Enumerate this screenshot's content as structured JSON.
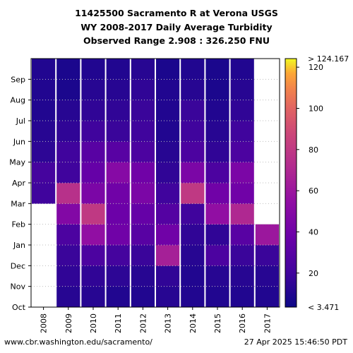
{
  "chart_data": {
    "type": "heatmap",
    "title_lines": [
      "11425500 Sacramento R at Verona USGS",
      "WY 2008-2017 Daily Average Turbidity",
      "Observed Range 2.908 : 326.250 FNU"
    ],
    "x_categories": [
      "2008",
      "2009",
      "2010",
      "2011",
      "2012",
      "2013",
      "2014",
      "2015",
      "2016",
      "2017"
    ],
    "y_ticks": [
      "Oct",
      "Nov",
      "Dec",
      "Jan",
      "Feb",
      "Mar",
      "Apr",
      "May",
      "Jun",
      "Jul",
      "Aug",
      "Sep"
    ],
    "colorbar": {
      "min": 3.471,
      "max": 124.167,
      "ticks": [
        20,
        40,
        60,
        80,
        100,
        120
      ],
      "top_label": "> 124.167",
      "bottom_label": "< 3.471"
    },
    "colormap": "plasma",
    "monthly_turbidity_estimates": {
      "2008": [
        null,
        null,
        null,
        null,
        null,
        20,
        22,
        14,
        12,
        10,
        10,
        10
      ],
      "2009": [
        12,
        15,
        18,
        25,
        48,
        75,
        20,
        20,
        15,
        12,
        8,
        8
      ],
      "2010": [
        12,
        15,
        25,
        55,
        80,
        45,
        35,
        30,
        20,
        15,
        12,
        10
      ],
      "2011": [
        10,
        14,
        22,
        40,
        38,
        40,
        50,
        30,
        18,
        15,
        12,
        10
      ],
      "2012": [
        10,
        12,
        18,
        30,
        35,
        45,
        40,
        25,
        20,
        18,
        15,
        12
      ],
      "2013": [
        12,
        15,
        65,
        40,
        28,
        20,
        15,
        12,
        10,
        10,
        10,
        8
      ],
      "2014": [
        10,
        10,
        12,
        15,
        20,
        80,
        45,
        25,
        20,
        18,
        12,
        10
      ],
      "2015": [
        10,
        12,
        25,
        15,
        55,
        40,
        25,
        15,
        12,
        10,
        8,
        8
      ],
      "2016": [
        10,
        12,
        18,
        30,
        70,
        40,
        45,
        25,
        20,
        15,
        12,
        10
      ],
      "2017": [
        10,
        12,
        18,
        60,
        null,
        null,
        null,
        null,
        null,
        null,
        null,
        null
      ]
    }
  },
  "footer": {
    "left": "www.cbr.washington.edu/sacramento/",
    "right": "27 Apr 2025 15:46:50 PDT"
  }
}
